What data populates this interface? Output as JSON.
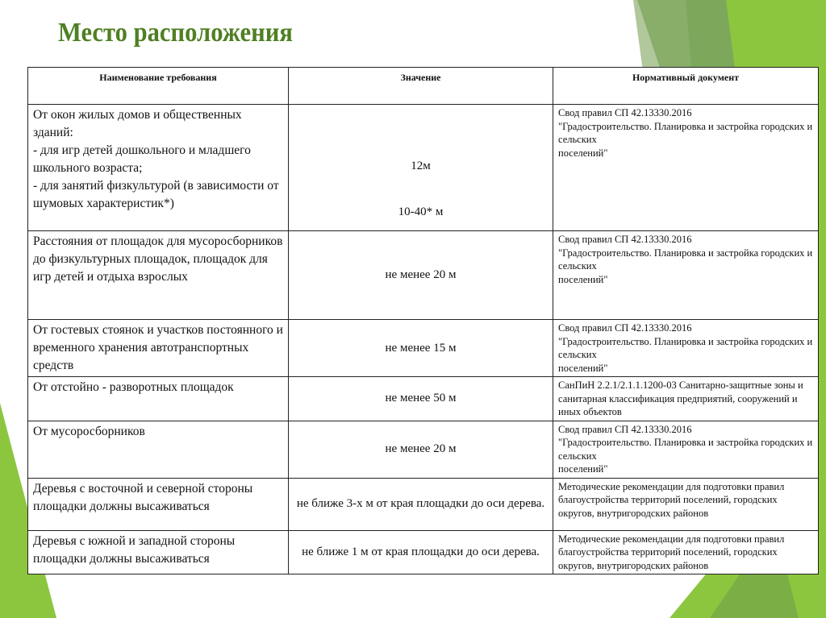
{
  "title": "Место расположения",
  "colors": {
    "title": "#4f7f23",
    "accent_dark": "#6f9e4a",
    "accent_light": "#8cc63f"
  },
  "table": {
    "headers": [
      "Наименование требования",
      "Значение",
      "Нормативный документ"
    ],
    "rows": [
      {
        "req": "От окон жилых домов и общественных зданий:\n- для игр детей дошкольного и младшего школьного возраста;\n- для занятий физкультурой (в зависимости от шумовых характеристик*)",
        "val": "12м",
        "val2": "10-40* м",
        "doc": "Свод правил СП 42.13330.2016\n\"Градостроительство. Планировка и застройка городских и сельских\nпоселений\""
      },
      {
        "req": "Расстояния от площадок для мусоросборников до физкультурных площадок, площадок для игр детей и отдыха взрослых",
        "val": "не менее 20 м",
        "doc": "Свод правил СП 42.13330.2016\n\"Градостроительство. Планировка и застройка городских и сельских\nпоселений\""
      },
      {
        "req": "От гостевых стоянок и участков постоянного и временного хранения автотранспортных средств",
        "val": "не менее 15 м",
        "doc": "Свод правил СП 42.13330.2016\n\"Градостроительство. Планировка и застройка городских и сельских\nпоселений\""
      },
      {
        "req": "От отстойно - разворотных площадок",
        "val": "не менее 50 м",
        "doc": "СанПиН 2.2.1/2.1.1.1200-03 Санитарно-защитные зоны и санитарная классификация предприятий, сооружений и иных объектов"
      },
      {
        "req": "От мусоросборников",
        "val": "не менее 20 м",
        "doc": "Свод правил СП 42.13330.2016\n\"Градостроительство. Планировка и застройка городских и сельских\nпоселений\""
      },
      {
        "req": "Деревья с восточной и северной стороны площадки должны высаживаться",
        "val": "не ближе 3-х м от края площадки до оси дерева.",
        "doc": "Методические рекомендации для подготовки правил благоустройства территорий поселений, городских округов, внутригородских районов"
      },
      {
        "req": "Деревья с южной и западной стороны площадки должны высаживаться",
        "val": "не ближе 1 м от края площадки до оси дерева.",
        "doc": "Методические рекомендации для подготовки правил благоустройства территорий поселений, городских округов, внутригородских районов"
      }
    ]
  }
}
